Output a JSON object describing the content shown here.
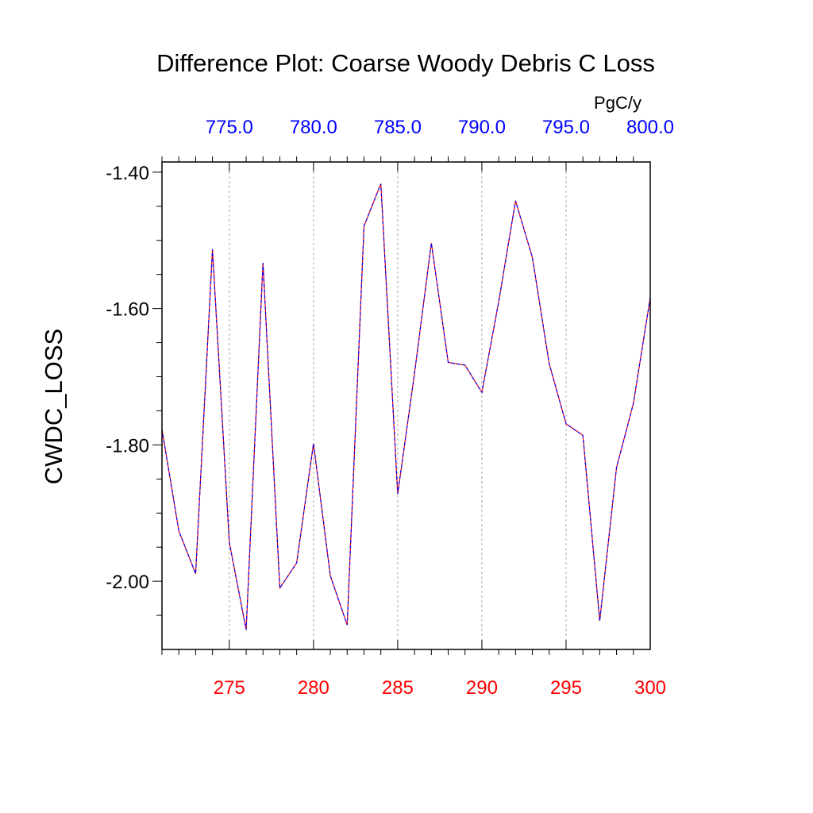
{
  "chart_data": {
    "type": "line",
    "title": "Difference Plot: Coarse Woody Debris C Loss",
    "ylabel": "CWDC_LOSS",
    "top_axis_units": "PgC/y",
    "xlim": [
      271,
      300
    ],
    "ylim": [
      -2.1,
      -1.385
    ],
    "top_axis_offset": 500,
    "x_ticks": [
      275,
      280,
      285,
      290,
      295,
      300
    ],
    "x_tick_labels": [
      "275",
      "280",
      "285",
      "290",
      "295",
      "300"
    ],
    "top_tick_labels": [
      "775.0",
      "780.0",
      "785.0",
      "790.0",
      "795.0",
      "800.0"
    ],
    "y_ticks": [
      -1.4,
      -1.6,
      -1.8,
      -2.0
    ],
    "y_tick_labels": [
      "-1.40",
      "-1.60",
      "-1.80",
      "-2.00"
    ],
    "grid": "vertical dashed at major x ticks",
    "x": [
      271,
      272,
      273,
      274,
      275,
      276,
      277,
      278,
      279,
      280,
      281,
      282,
      283,
      284,
      285,
      286,
      287,
      288,
      289,
      290,
      291,
      292,
      293,
      294,
      295,
      296,
      297,
      298,
      299,
      300
    ],
    "series": [
      {
        "name": "series-red",
        "color": "#ff0000",
        "values": [
          -1.777,
          -1.926,
          -1.989,
          -1.513,
          -1.943,
          -2.071,
          -1.533,
          -2.01,
          -1.973,
          -1.798,
          -1.992,
          -2.064,
          -1.479,
          -1.417,
          -1.872,
          -1.695,
          -1.504,
          -1.679,
          -1.683,
          -1.723,
          -1.59,
          -1.442,
          -1.525,
          -1.681,
          -1.769,
          -1.786,
          -2.058,
          -1.833,
          -1.739,
          -1.584
        ]
      },
      {
        "name": "series-blue",
        "color": "#0000ff",
        "values": [
          -1.777,
          -1.926,
          -1.989,
          -1.513,
          -1.943,
          -2.071,
          -1.533,
          -2.01,
          -1.973,
          -1.798,
          -1.992,
          -2.064,
          -1.479,
          -1.417,
          -1.872,
          -1.695,
          -1.504,
          -1.679,
          -1.683,
          -1.723,
          -1.59,
          -1.442,
          -1.525,
          -1.681,
          -1.769,
          -1.786,
          -2.058,
          -1.833,
          -1.739,
          -1.584
        ]
      }
    ],
    "colors": {
      "bottom_axis": "#ff0000",
      "top_axis": "#0000ff",
      "text": "#000000"
    }
  }
}
